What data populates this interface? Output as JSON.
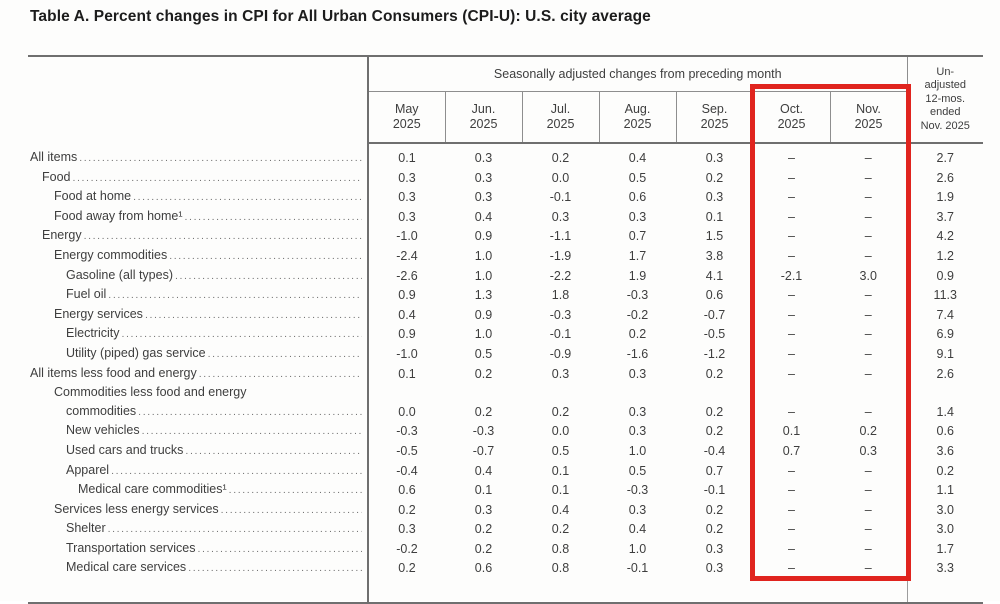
{
  "title": "Table A. Percent changes in CPI for All Urban Consumers (CPI-U): U.S. city average",
  "table": {
    "group_header": "Seasonally adjusted changes from preceding month",
    "unadjusted_header": "Un-\nadjusted\n12-mos.\nended\nNov. 2025",
    "month_columns": [
      {
        "month": "May",
        "year": "2025"
      },
      {
        "month": "Jun.",
        "year": "2025"
      },
      {
        "month": "Jul.",
        "year": "2025"
      },
      {
        "month": "Aug.",
        "year": "2025"
      },
      {
        "month": "Sep.",
        "year": "2025"
      },
      {
        "month": "Oct.",
        "year": "2025"
      },
      {
        "month": "Nov.",
        "year": "2025"
      }
    ],
    "rows": [
      {
        "label": "All items",
        "indent": 0,
        "values": [
          "0.1",
          "0.3",
          "0.2",
          "0.4",
          "0.3",
          "–",
          "–",
          "2.7"
        ]
      },
      {
        "label": "Food",
        "indent": 1,
        "values": [
          "0.3",
          "0.3",
          "0.0",
          "0.5",
          "0.2",
          "–",
          "–",
          "2.6"
        ]
      },
      {
        "label": "Food at home",
        "indent": 2,
        "values": [
          "0.3",
          "0.3",
          "-0.1",
          "0.6",
          "0.3",
          "–",
          "–",
          "1.9"
        ]
      },
      {
        "label": "Food away from home¹",
        "indent": 2,
        "values": [
          "0.3",
          "0.4",
          "0.3",
          "0.3",
          "0.1",
          "–",
          "–",
          "3.7"
        ]
      },
      {
        "label": "Energy",
        "indent": 1,
        "values": [
          "-1.0",
          "0.9",
          "-1.1",
          "0.7",
          "1.5",
          "–",
          "–",
          "4.2"
        ]
      },
      {
        "label": "Energy commodities",
        "indent": 2,
        "values": [
          "-2.4",
          "1.0",
          "-1.9",
          "1.7",
          "3.8",
          "–",
          "–",
          "1.2"
        ]
      },
      {
        "label": "Gasoline (all types)",
        "indent": 3,
        "values": [
          "-2.6",
          "1.0",
          "-2.2",
          "1.9",
          "4.1",
          "-2.1",
          "3.0",
          "0.9"
        ]
      },
      {
        "label": "Fuel oil",
        "indent": 3,
        "values": [
          "0.9",
          "1.3",
          "1.8",
          "-0.3",
          "0.6",
          "–",
          "–",
          "11.3"
        ]
      },
      {
        "label": "Energy services",
        "indent": 2,
        "values": [
          "0.4",
          "0.9",
          "-0.3",
          "-0.2",
          "-0.7",
          "–",
          "–",
          "7.4"
        ]
      },
      {
        "label": "Electricity",
        "indent": 3,
        "values": [
          "0.9",
          "1.0",
          "-0.1",
          "0.2",
          "-0.5",
          "–",
          "–",
          "6.9"
        ]
      },
      {
        "label": "Utility (piped) gas service",
        "indent": 3,
        "values": [
          "-1.0",
          "0.5",
          "-0.9",
          "-1.6",
          "-1.2",
          "–",
          "–",
          "9.1"
        ]
      },
      {
        "label": "All items less food and energy",
        "indent": 0,
        "values": [
          "0.1",
          "0.2",
          "0.3",
          "0.3",
          "0.2",
          "–",
          "–",
          "2.6"
        ]
      },
      {
        "label": "Commodities less food and energy",
        "label2": "commodities",
        "indent": 2,
        "values": [
          "0.0",
          "0.2",
          "0.2",
          "0.3",
          "0.2",
          "–",
          "–",
          "1.4"
        ]
      },
      {
        "label": "New vehicles",
        "indent": 3,
        "values": [
          "-0.3",
          "-0.3",
          "0.0",
          "0.3",
          "0.2",
          "0.1",
          "0.2",
          "0.6"
        ]
      },
      {
        "label": "Used cars and trucks",
        "indent": 3,
        "values": [
          "-0.5",
          "-0.7",
          "0.5",
          "1.0",
          "-0.4",
          "0.7",
          "0.3",
          "3.6"
        ]
      },
      {
        "label": "Apparel",
        "indent": 3,
        "values": [
          "-0.4",
          "0.4",
          "0.1",
          "0.5",
          "0.7",
          "–",
          "–",
          "0.2"
        ]
      },
      {
        "label": "Medical care commodities¹",
        "indent": 4,
        "values": [
          "0.6",
          "0.1",
          "0.1",
          "-0.3",
          "-0.1",
          "–",
          "–",
          "1.1"
        ]
      },
      {
        "label": "Services less energy services",
        "indent": 2,
        "values": [
          "0.2",
          "0.3",
          "0.4",
          "0.3",
          "0.2",
          "–",
          "–",
          "3.0"
        ]
      },
      {
        "label": "Shelter",
        "indent": 3,
        "values": [
          "0.3",
          "0.2",
          "0.2",
          "0.4",
          "0.2",
          "–",
          "–",
          "3.0"
        ]
      },
      {
        "label": "Transportation services",
        "indent": 3,
        "values": [
          "-0.2",
          "0.2",
          "0.8",
          "1.0",
          "0.3",
          "–",
          "–",
          "1.7"
        ]
      },
      {
        "label": "Medical care services",
        "indent": 3,
        "values": [
          "0.2",
          "0.6",
          "0.8",
          "-0.1",
          "0.3",
          "–",
          "–",
          "3.3"
        ]
      }
    ]
  },
  "highlight": {
    "color": "#e0241e",
    "columns": [
      "Oct. 2025",
      "Nov. 2025"
    ]
  }
}
